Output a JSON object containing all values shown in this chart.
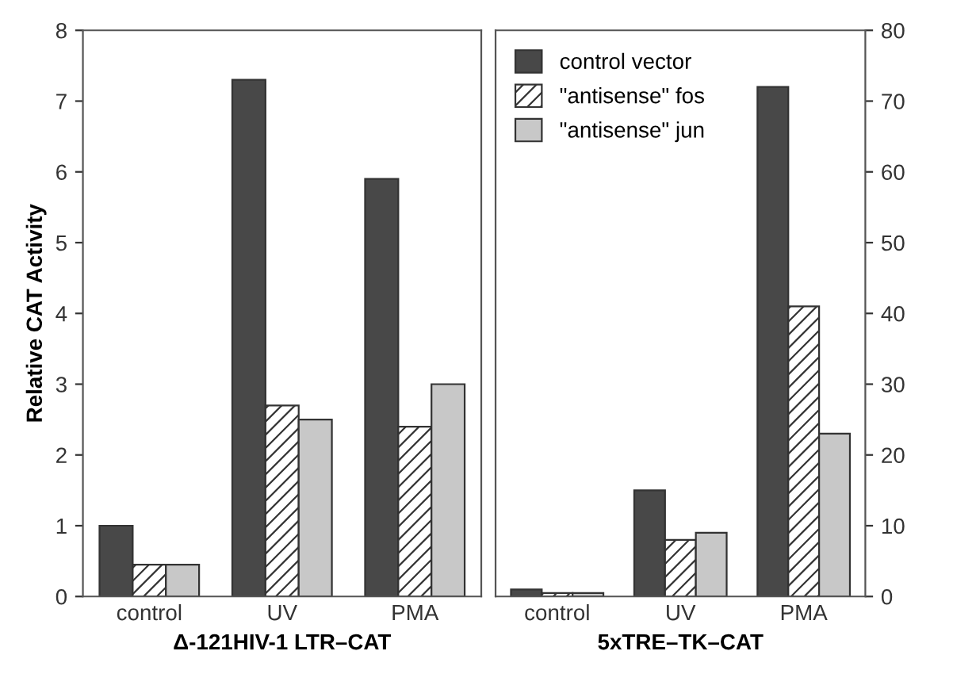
{
  "chart_data": [
    {
      "type": "bar",
      "xlabel": "Δ-121HIV-1 LTR–CAT",
      "ylabel": "Relative CAT Activity",
      "categories": [
        "control",
        "UV",
        "PMA"
      ],
      "ylim": [
        0,
        8
      ],
      "yticks": [
        0,
        1,
        2,
        3,
        4,
        5,
        6,
        7,
        8
      ],
      "grid": false,
      "legend": false,
      "series": [
        {
          "color": "#484848",
          "values": [
            1.0,
            7.3,
            5.9
          ]
        },
        {
          "color": "#333333",
          "values": [
            0.45,
            2.7,
            2.4
          ]
        },
        {
          "color": "#c8c8c8",
          "values": [
            0.45,
            2.5,
            3.0
          ]
        }
      ]
    },
    {
      "type": "bar",
      "xlabel": "5xTRE–TK–CAT",
      "categories": [
        "control",
        "UV",
        "PMA"
      ],
      "ylim": [
        0,
        80
      ],
      "yticks": [
        0,
        10,
        20,
        30,
        40,
        50,
        60,
        70,
        80
      ],
      "grid": false,
      "legend": "top left",
      "series": [
        {
          "name": "control vector",
          "color": "#484848",
          "values": [
            1,
            15,
            72
          ]
        },
        {
          "name": "\"antisense\" fos",
          "color": "#333333",
          "values": [
            0.5,
            8,
            41
          ]
        },
        {
          "name": "\"antisense\" jun",
          "color": "#c8c8c8",
          "values": [
            0.5,
            9,
            23
          ]
        }
      ]
    }
  ]
}
